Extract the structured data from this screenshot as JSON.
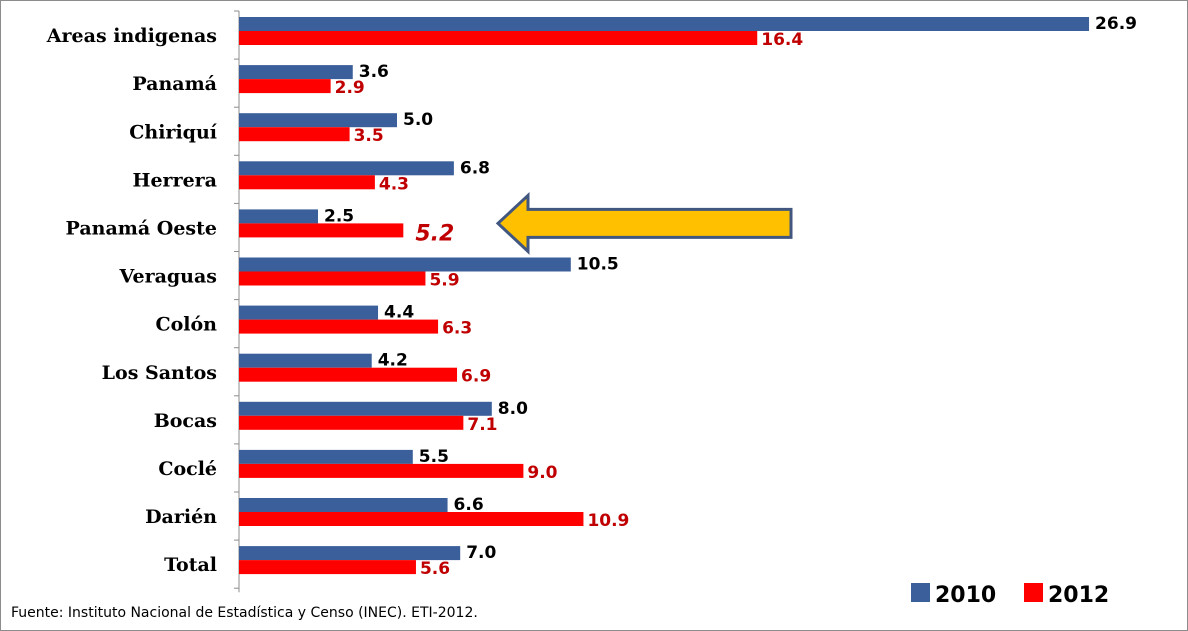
{
  "chart_data": {
    "type": "bar",
    "orientation": "horizontal",
    "categories": [
      "Areas indigenas",
      "Panamá",
      "Chiriquí",
      "Herrera",
      "Panamá Oeste",
      "Veraguas",
      "Colón",
      "Los Santos",
      "Bocas",
      "Coclé",
      "Darién",
      "Total"
    ],
    "series": [
      {
        "name": "2010",
        "color": "#3b5f9b",
        "values": [
          26.9,
          3.6,
          5.0,
          6.8,
          2.5,
          10.5,
          4.4,
          4.2,
          8.0,
          5.5,
          6.6,
          7.0
        ],
        "labels": [
          "26.9",
          "3.6",
          "5.0",
          "6.8",
          "2.5",
          "10.5",
          "4.4",
          "4.2",
          "8.0",
          "5.5",
          "6.6",
          "7.0"
        ]
      },
      {
        "name": "2012",
        "color": "#ff0000",
        "values": [
          16.4,
          2.9,
          3.5,
          4.3,
          5.2,
          5.9,
          6.3,
          6.9,
          7.1,
          9.0,
          10.9,
          5.6
        ],
        "labels": [
          "16.4",
          "2.9",
          "3.5",
          "4.3",
          "5.2",
          "5.9",
          "6.3",
          "6.9",
          "7.1",
          "9.0",
          "10.9",
          "5.6"
        ]
      }
    ],
    "highlight": {
      "category": "Panamá Oeste",
      "series": "2012",
      "arrow_color": "#ffc000",
      "arrow_outline": "#41577f"
    },
    "legend": {
      "position": "bottom-right"
    },
    "grid": false,
    "source_note": "Fuente: Instituto Nacional de Estadística y Censo (INEC). ETI-2012."
  }
}
